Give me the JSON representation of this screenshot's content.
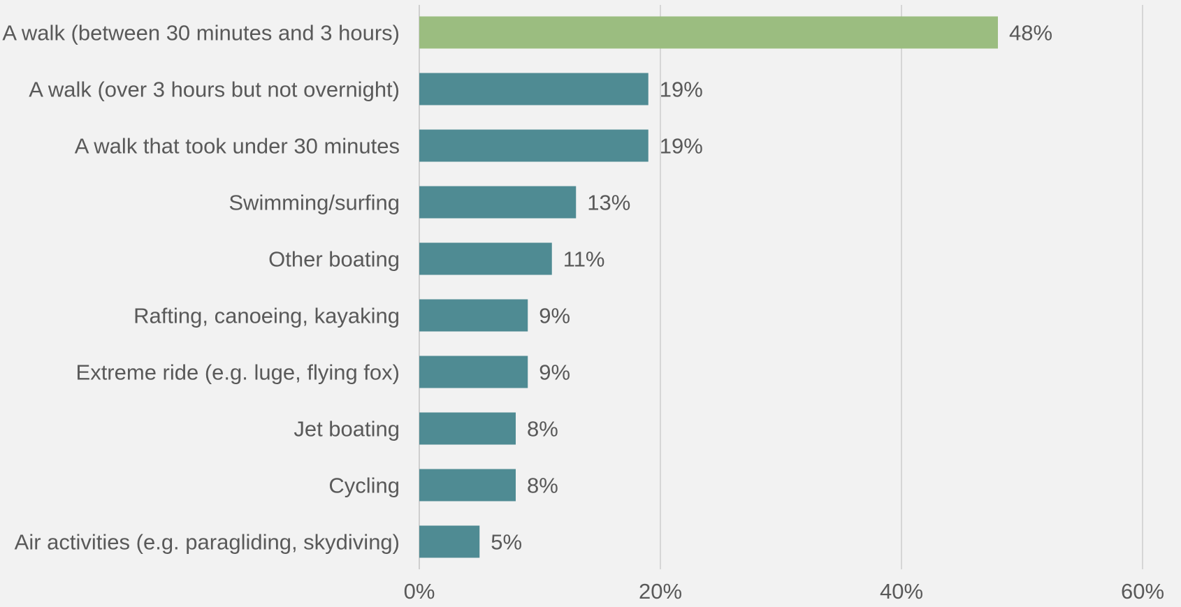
{
  "chart_data": {
    "type": "bar",
    "orientation": "horizontal",
    "title": "",
    "xlabel": "",
    "ylabel": "",
    "categories": [
      "A walk (between 30 minutes and 3 hours)",
      "A walk (over 3 hours but not overnight)",
      "A walk that took under 30 minutes",
      "Swimming/surfing",
      "Other boating",
      "Rafting, canoeing, kayaking",
      "Extreme ride (e.g. luge, flying fox)",
      "Jet boating",
      "Cycling",
      "Air activities (e.g. paragliding, skydiving)"
    ],
    "values": [
      48,
      19,
      19,
      13,
      11,
      9,
      9,
      8,
      8,
      5
    ],
    "value_labels": [
      "48%",
      "19%",
      "19%",
      "13%",
      "11%",
      "9%",
      "9%",
      "8%",
      "8%",
      "5%"
    ],
    "bar_colors": [
      "#9bbd80",
      "#4f8b93",
      "#4f8b93",
      "#4f8b93",
      "#4f8b93",
      "#4f8b93",
      "#4f8b93",
      "#4f8b93",
      "#4f8b93",
      "#4f8b93"
    ],
    "xlim": [
      0,
      60
    ],
    "xticks": [
      0,
      20,
      40,
      60
    ],
    "xtick_labels": [
      "0%",
      "20%",
      "40%",
      "60%"
    ],
    "grid": true,
    "legend": "none",
    "colors": {
      "background": "#f2f2f2",
      "highlight": "#9bbd80",
      "default_bar": "#4f8b93",
      "text": "#595959",
      "grid": "#d6d6d6"
    }
  }
}
